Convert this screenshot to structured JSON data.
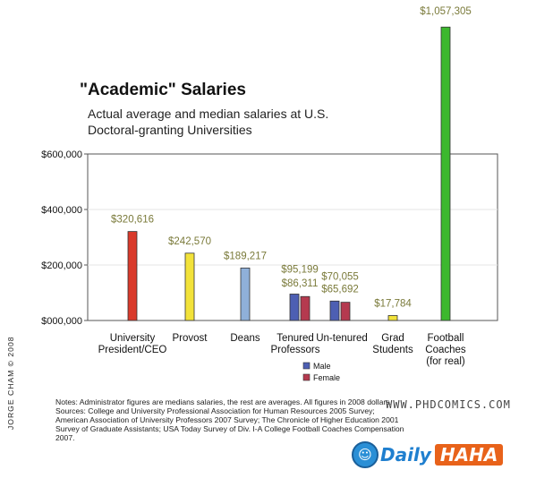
{
  "chart_data": {
    "type": "bar",
    "title": "\"Academic\" Salaries",
    "subtitle": "Actual average and median salaries at U.S. Doctoral-granting Universities",
    "ylim": [
      0,
      600000
    ],
    "yticks": [
      0,
      200000,
      400000,
      600000
    ],
    "ytick_labels": [
      "$000,000",
      "$200,000",
      "$400,000",
      "$600,000"
    ],
    "categories": [
      {
        "label": [
          "University",
          "President/CEO"
        ],
        "bars": [
          {
            "value": 320616,
            "label": "$320,616",
            "color": "#d93a2b"
          }
        ]
      },
      {
        "label": [
          "Provost"
        ],
        "bars": [
          {
            "value": 242570,
            "label": "$242,570",
            "color": "#f2e23a"
          }
        ]
      },
      {
        "label": [
          "Deans"
        ],
        "bars": [
          {
            "value": 189217,
            "label": "$189,217",
            "color": "#8fb0d9"
          }
        ]
      },
      {
        "label": [
          "Tenured",
          "Professors"
        ],
        "bars": [
          {
            "value": 95199,
            "label": "$95,199",
            "color": "#4d5fb3"
          },
          {
            "value": 86311,
            "label": "$86,311",
            "color": "#b53a4f"
          }
        ]
      },
      {
        "label": [
          "Un-tenured"
        ],
        "bars": [
          {
            "value": 70055,
            "label": "$70,055",
            "color": "#4d5fb3"
          },
          {
            "value": 65692,
            "label": "$65,692",
            "color": "#b53a4f"
          }
        ]
      },
      {
        "label": [
          "Grad",
          "Students"
        ],
        "bars": [
          {
            "value": 17784,
            "label": "$17,784",
            "color": "#f2e23a"
          }
        ]
      },
      {
        "label": [
          "Football",
          "Coaches",
          "(for real)"
        ],
        "bars": [
          {
            "value": 1057305,
            "label": "$1,057,305",
            "color": "#3cb82e"
          }
        ]
      }
    ],
    "legend": [
      {
        "name": "Male",
        "color": "#4d5fb3"
      },
      {
        "name": "Female",
        "color": "#b53a4f"
      }
    ]
  },
  "notes": "Notes: Administrator figures are medians salaries, the rest are averages. All figures in 2008 dollars. Sources: College and University Professional Association for Human Resources 2005 Survey; American Association of University Professors 2007 Survey; The Chronicle of Higher Education 2001 Survey of Graduate Assistants; USA Today Survey of Div. I-A College Football Coaches Compensation 2007.",
  "credit": "JORGE CHAM © 2008",
  "website": "WWW.PHDCOMICS.COM",
  "logo": {
    "face": "☺",
    "part1": "Daily",
    "part2": "HAHA"
  }
}
